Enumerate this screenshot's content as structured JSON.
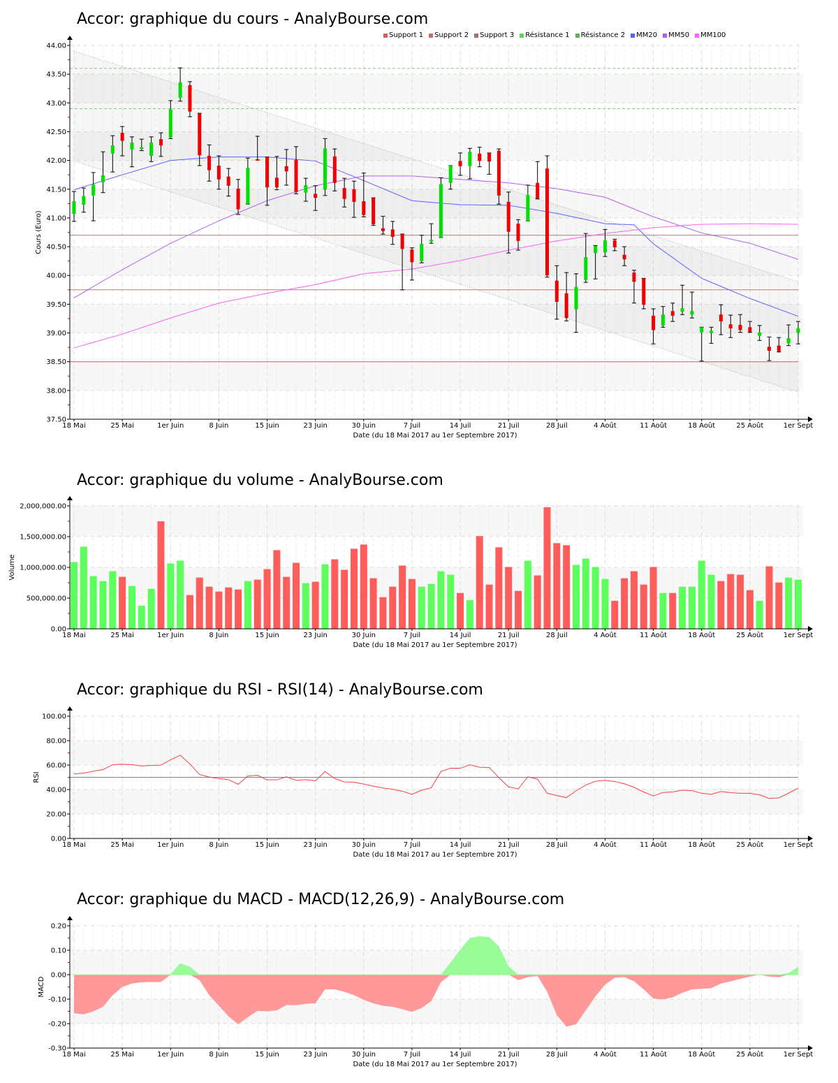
{
  "legend": [
    {
      "label": "Support 1",
      "color": "#d06060"
    },
    {
      "label": "Support 2",
      "color": "#c07070"
    },
    {
      "label": "Support 3",
      "color": "#a07070"
    },
    {
      "label": "Résistance 1",
      "color": "#60d060"
    },
    {
      "label": "Résistance 2",
      "color": "#60b060"
    },
    {
      "label": "MM20",
      "color": "#6060ff"
    },
    {
      "label": "MM50",
      "color": "#b060f0"
    },
    {
      "label": "MM100",
      "color": "#ff60ff"
    }
  ],
  "colors": {
    "up": "#00e000",
    "down": "#f00000",
    "vol_up": "#5cff5c",
    "vol_down": "#ff5c5c",
    "macd_pos": "#98fb98",
    "macd_neg": "#ff9898",
    "rsi": "#ff4040",
    "band": "#f7f7f7"
  },
  "x_ticks": [
    {
      "label": "18 Mai",
      "index": 0
    },
    {
      "label": "25 Mai",
      "index": 5
    },
    {
      "label": "1er Juin",
      "index": 10
    },
    {
      "label": "8 Juin",
      "index": 15
    },
    {
      "label": "15 Juin",
      "index": 20
    },
    {
      "label": "23 Juin",
      "index": 25
    },
    {
      "label": "30 Juin",
      "index": 30
    },
    {
      "label": "7 Juil",
      "index": 35
    },
    {
      "label": "14 Juil",
      "index": 40
    },
    {
      "label": "21 Juil",
      "index": 45
    },
    {
      "label": "28 Juil",
      "index": 50
    },
    {
      "label": "4 Août",
      "index": 55
    },
    {
      "label": "11 Août",
      "index": 60
    },
    {
      "label": "18 Août",
      "index": 65
    },
    {
      "label": "25 Août",
      "index": 70
    },
    {
      "label": "1er Sept",
      "index": 75
    }
  ],
  "xlabel": "Date (du 18 Mai 2017 au 1er Septembre 2017)",
  "chart_data": [
    {
      "id": "price",
      "type": "candlestick",
      "title": "Accor: graphique du cours - AnalyBourse.com",
      "ylabel": "Cours (Euro)",
      "ylim": [
        37.5,
        44.0
      ],
      "y_ticks": [
        "37.50",
        "38.00",
        "38.50",
        "39.00",
        "39.50",
        "40.00",
        "40.50",
        "41.00",
        "41.50",
        "42.00",
        "42.50",
        "43.00",
        "43.50",
        "44.00"
      ],
      "bands": [
        [
          38.0,
          38.5
        ],
        [
          39.0,
          39.5
        ],
        [
          40.0,
          40.5
        ],
        [
          41.0,
          41.5
        ],
        [
          42.0,
          42.5
        ],
        [
          43.0,
          43.5
        ]
      ],
      "ohlc": [
        [
          41.07,
          41.46,
          40.94,
          41.29
        ],
        [
          41.23,
          41.52,
          41.1,
          41.38
        ],
        [
          41.39,
          41.79,
          40.95,
          41.58
        ],
        [
          41.62,
          42.15,
          41.44,
          41.74
        ],
        [
          42.12,
          42.43,
          41.8,
          42.26
        ],
        [
          42.48,
          42.59,
          42.08,
          42.34
        ],
        [
          42.19,
          42.41,
          41.89,
          42.31
        ],
        [
          42.2,
          42.37,
          42.17,
          42.23
        ],
        [
          42.08,
          42.41,
          41.98,
          42.31
        ],
        [
          42.37,
          42.48,
          42.07,
          42.26
        ],
        [
          42.4,
          43.04,
          42.38,
          42.89
        ],
        [
          43.09,
          43.61,
          43.03,
          43.36
        ],
        [
          43.31,
          43.37,
          42.76,
          42.85
        ],
        [
          42.82,
          42.82,
          41.91,
          42.09
        ],
        [
          42.08,
          42.27,
          41.64,
          41.83
        ],
        [
          41.91,
          42.08,
          41.5,
          41.67
        ],
        [
          41.72,
          41.86,
          41.38,
          41.56
        ],
        [
          41.51,
          41.67,
          41.06,
          41.15
        ],
        [
          41.24,
          42.04,
          41.24,
          41.87
        ],
        [
          42.02,
          42.42,
          42.01,
          42.01
        ],
        [
          42.06,
          42.06,
          41.22,
          41.53
        ],
        [
          41.7,
          42.07,
          41.49,
          41.53
        ],
        [
          41.9,
          42.19,
          41.57,
          41.81
        ],
        [
          42.01,
          42.24,
          41.42,
          41.45
        ],
        [
          41.44,
          41.69,
          41.29,
          41.57
        ],
        [
          41.42,
          41.56,
          41.13,
          41.35
        ],
        [
          41.49,
          42.38,
          41.39,
          42.21
        ],
        [
          42.07,
          42.2,
          41.47,
          41.61
        ],
        [
          41.52,
          41.69,
          41.19,
          41.33
        ],
        [
          41.5,
          41.64,
          41.01,
          41.28
        ],
        [
          41.29,
          41.78,
          41.02,
          41.05
        ],
        [
          41.35,
          41.35,
          40.87,
          40.89
        ],
        [
          40.82,
          41.03,
          40.72,
          40.77
        ],
        [
          40.8,
          40.94,
          40.54,
          40.67
        ],
        [
          40.72,
          40.72,
          39.75,
          40.46
        ],
        [
          40.45,
          40.48,
          39.92,
          40.23
        ],
        [
          40.25,
          40.7,
          40.22,
          40.55
        ],
        [
          40.59,
          40.9,
          40.56,
          40.62
        ],
        [
          40.66,
          41.7,
          40.66,
          41.59
        ],
        [
          41.61,
          41.91,
          41.5,
          41.91
        ],
        [
          41.99,
          42.13,
          41.74,
          41.9
        ],
        [
          41.9,
          42.21,
          41.68,
          42.15
        ],
        [
          42.12,
          42.23,
          41.89,
          41.99
        ],
        [
          42.13,
          42.13,
          41.76,
          41.98
        ],
        [
          42.17,
          42.2,
          41.24,
          41.39
        ],
        [
          41.28,
          41.45,
          40.39,
          40.76
        ],
        [
          40.9,
          40.97,
          40.44,
          40.6
        ],
        [
          40.95,
          41.57,
          40.95,
          41.4
        ],
        [
          41.61,
          41.98,
          41.33,
          41.34
        ],
        [
          41.86,
          42.08,
          39.97,
          40.0
        ],
        [
          39.91,
          40.17,
          39.24,
          39.54
        ],
        [
          39.69,
          40.05,
          39.21,
          39.26
        ],
        [
          39.41,
          40.03,
          39.01,
          39.8
        ],
        [
          39.92,
          40.73,
          39.88,
          40.32
        ],
        [
          40.39,
          40.52,
          39.94,
          40.51
        ],
        [
          40.4,
          40.8,
          40.33,
          40.61
        ],
        [
          40.61,
          40.63,
          40.43,
          40.49
        ],
        [
          40.36,
          40.5,
          40.17,
          40.28
        ],
        [
          40.05,
          40.09,
          39.52,
          39.89
        ],
        [
          39.95,
          39.95,
          39.42,
          39.49
        ],
        [
          39.3,
          39.42,
          38.81,
          39.05
        ],
        [
          39.13,
          39.46,
          39.1,
          39.32
        ],
        [
          39.38,
          39.52,
          39.2,
          39.3
        ],
        [
          39.37,
          39.83,
          39.32,
          39.43
        ],
        [
          39.32,
          39.71,
          39.26,
          39.38
        ],
        [
          39.01,
          39.1,
          38.51,
          39.1
        ],
        [
          39.0,
          39.1,
          38.82,
          39.04
        ],
        [
          39.32,
          39.49,
          38.97,
          39.2
        ],
        [
          39.15,
          39.31,
          38.92,
          39.08
        ],
        [
          39.14,
          39.32,
          39.01,
          39.05
        ],
        [
          39.1,
          39.2,
          39.01,
          39.02
        ],
        [
          38.95,
          39.13,
          38.87,
          39.01
        ],
        [
          38.76,
          38.93,
          38.52,
          38.69
        ],
        [
          38.78,
          38.92,
          38.67,
          38.68
        ],
        [
          38.82,
          39.14,
          38.78,
          38.91
        ],
        [
          39.0,
          39.2,
          38.81,
          39.08
        ]
      ],
      "levels": [
        {
          "name": "Support 1",
          "value": 38.5,
          "color": "#d06060",
          "style": "solid"
        },
        {
          "name": "Support 2",
          "value": 39.75,
          "color": "#b08080",
          "style": "solid"
        },
        {
          "name": "Support 3",
          "value": 40.7,
          "color": "#b08080",
          "style": "solid"
        },
        {
          "name": "Résistance 1",
          "value": 42.9,
          "color": "#90c090",
          "style": "dashed"
        },
        {
          "name": "Résistance 2",
          "value": 43.6,
          "color": "#90c090",
          "style": "dashed"
        }
      ],
      "trend_channel": {
        "upper": [
          [
            0,
            43.9
          ],
          [
            75,
            39.89
          ]
        ],
        "lower": [
          [
            0,
            41.99
          ],
          [
            75,
            37.97
          ]
        ]
      },
      "moving_averages": [
        {
          "name": "MM20",
          "color": "#6060ff",
          "points": [
            [
              0,
              41.49
            ],
            [
              5,
              41.75
            ],
            [
              10,
              42.0
            ],
            [
              15,
              42.06
            ],
            [
              20,
              42.06
            ],
            [
              25,
              41.99
            ],
            [
              30,
              41.65
            ],
            [
              35,
              41.3
            ],
            [
              40,
              41.23
            ],
            [
              45,
              41.22
            ],
            [
              50,
              41.08
            ],
            [
              55,
              40.9
            ],
            [
              58,
              40.88
            ],
            [
              60,
              40.55
            ],
            [
              65,
              39.95
            ],
            [
              70,
              39.6
            ],
            [
              75,
              39.29
            ]
          ]
        },
        {
          "name": "MM50",
          "color": "#b060f0",
          "points": [
            [
              0,
              39.61
            ],
            [
              5,
              40.1
            ],
            [
              10,
              40.56
            ],
            [
              15,
              40.95
            ],
            [
              20,
              41.3
            ],
            [
              25,
              41.56
            ],
            [
              30,
              41.73
            ],
            [
              35,
              41.73
            ],
            [
              40,
              41.67
            ],
            [
              45,
              41.61
            ],
            [
              50,
              41.51
            ],
            [
              55,
              41.36
            ],
            [
              60,
              41.02
            ],
            [
              65,
              40.74
            ],
            [
              70,
              40.56
            ],
            [
              75,
              40.28
            ]
          ]
        },
        {
          "name": "MM100",
          "color": "#ff60ff",
          "points": [
            [
              0,
              38.74
            ],
            [
              5,
              38.98
            ],
            [
              10,
              39.26
            ],
            [
              15,
              39.52
            ],
            [
              20,
              39.69
            ],
            [
              25,
              39.84
            ],
            [
              30,
              40.03
            ],
            [
              35,
              40.11
            ],
            [
              40,
              40.26
            ],
            [
              45,
              40.44
            ],
            [
              50,
              40.6
            ],
            [
              55,
              40.73
            ],
            [
              60,
              40.83
            ],
            [
              65,
              40.89
            ],
            [
              70,
              40.9
            ],
            [
              75,
              40.89
            ]
          ]
        }
      ]
    },
    {
      "id": "volume",
      "type": "bar",
      "title": "Accor: graphique du volume - AnalyBourse.com",
      "ylabel": "Volume",
      "ylim": [
        0,
        2000000
      ],
      "y_ticks": [
        "0.00",
        "500,000.00",
        "1,000,000.00",
        "1,500,000.00",
        "2,000,000.00"
      ],
      "bands": [
        [
          500000,
          1000000
        ],
        [
          1500000,
          2000000
        ]
      ],
      "values": [
        1086000,
        1337000,
        857000,
        777000,
        937000,
        846000,
        697000,
        377000,
        651000,
        1749000,
        1063000,
        1109000,
        549000,
        834000,
        686000,
        606000,
        674000,
        640000,
        777000,
        800000,
        971000,
        1280000,
        846000,
        1074000,
        743000,
        766000,
        1051000,
        1131000,
        960000,
        1303000,
        1371000,
        823000,
        514000,
        686000,
        1029000,
        811000,
        686000,
        731000,
        937000,
        880000,
        583000,
        469000,
        1509000,
        720000,
        1326000,
        1006000,
        617000,
        1109000,
        869000,
        1977000,
        1394000,
        1360000,
        1040000,
        1143000,
        1006000,
        811000,
        457000,
        823000,
        937000,
        720000,
        1006000,
        583000,
        583000,
        686000,
        686000,
        1109000,
        880000,
        777000,
        891000,
        880000,
        629000,
        457000,
        1017000,
        754000,
        834000,
        800000
      ]
    },
    {
      "id": "rsi",
      "type": "line",
      "title": "Accor: graphique du RSI - RSI(14) - AnalyBourse.com",
      "ylabel": "RSI",
      "ylim": [
        0,
        100
      ],
      "y_ticks": [
        "0.00",
        "20.00",
        "40.00",
        "60.00",
        "80.00",
        "100.00"
      ],
      "bands": [
        [
          20,
          40
        ],
        [
          60,
          80
        ]
      ],
      "reference": 50,
      "values": [
        52.7,
        53.4,
        55.0,
        56.3,
        60.3,
        60.7,
        60.3,
        59.3,
        59.7,
        59.9,
        64.3,
        68.1,
        60.9,
        52.3,
        50.2,
        49.0,
        48.1,
        44.3,
        51.0,
        51.7,
        47.9,
        47.9,
        50.4,
        47.5,
        48.1,
        47.1,
        54.8,
        49.0,
        46.2,
        46.0,
        44.5,
        42.8,
        41.2,
        40.3,
        38.6,
        36.1,
        39.5,
        41.4,
        54.8,
        57.4,
        57.4,
        60.3,
        58.2,
        58.0,
        49.8,
        42.2,
        40.5,
        50.4,
        48.5,
        37.0,
        35.1,
        33.4,
        39.0,
        43.7,
        46.8,
        47.5,
        46.6,
        44.7,
        41.8,
        38.0,
        34.8,
        37.6,
        38.0,
        39.5,
        39.1,
        36.9,
        36.1,
        38.4,
        37.4,
        36.9,
        36.9,
        35.7,
        32.7,
        33.2,
        37.0,
        41.2
      ]
    },
    {
      "id": "macd",
      "type": "area",
      "title": "Accor: graphique du MACD - MACD(12,26,9) - AnalyBourse.com",
      "ylabel": "MACD",
      "ylim": [
        -0.3,
        0.2
      ],
      "y_ticks": [
        "-0.30",
        "-0.20",
        "-0.10",
        "0.00",
        "0.10",
        "0.20"
      ],
      "bands": [
        [
          -0.2,
          -0.1
        ],
        [
          0,
          0.1
        ]
      ],
      "values": [
        -0.158,
        -0.162,
        -0.15,
        -0.131,
        -0.084,
        -0.05,
        -0.036,
        -0.031,
        -0.03,
        -0.03,
        0.002,
        0.047,
        0.033,
        -0.022,
        -0.084,
        -0.127,
        -0.17,
        -0.203,
        -0.174,
        -0.148,
        -0.15,
        -0.146,
        -0.124,
        -0.125,
        -0.119,
        -0.117,
        -0.06,
        -0.06,
        -0.07,
        -0.084,
        -0.103,
        -0.117,
        -0.127,
        -0.131,
        -0.141,
        -0.152,
        -0.136,
        -0.108,
        -0.031,
        0.05,
        0.102,
        0.15,
        0.157,
        0.154,
        0.116,
        0.035,
        -0.022,
        -0.01,
        -0.005,
        -0.07,
        -0.165,
        -0.212,
        -0.203,
        -0.146,
        -0.089,
        -0.041,
        -0.012,
        -0.01,
        -0.027,
        -0.06,
        -0.098,
        -0.101,
        -0.093,
        -0.074,
        -0.06,
        -0.058,
        -0.055,
        -0.036,
        -0.027,
        -0.017,
        -0.008,
        0.0,
        -0.008,
        -0.01,
        0.007,
        0.032
      ]
    }
  ]
}
